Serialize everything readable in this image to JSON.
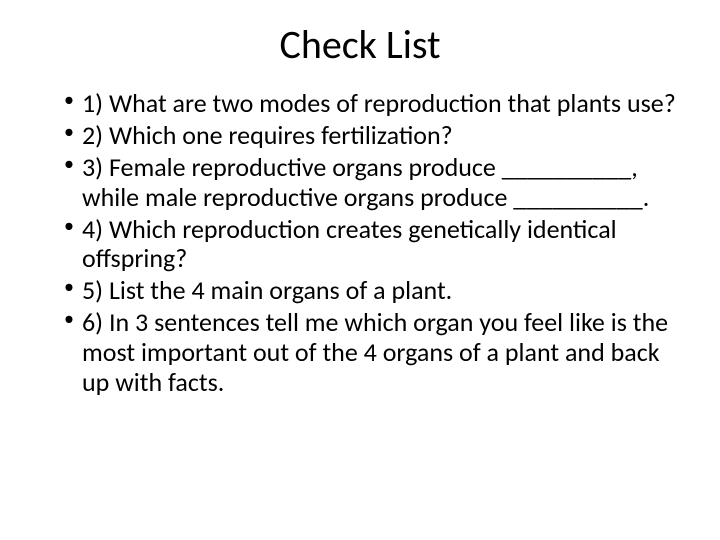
{
  "slide": {
    "title": "Check List",
    "title_fontsize": 40,
    "body_fontsize": 26,
    "background_color": "#ffffff",
    "text_color": "#000000",
    "bullets": [
      "1) What are two modes of reproduction that plants use?",
      "2) Which one requires fertilization?",
      "3) Female reproductive organs produce __________, while male reproductive organs produce __________.",
      "4) Which reproduction creates genetically identical offspring?",
      "5) List the 4 main organs of a plant.",
      "6) In 3 sentences tell me which organ you feel like is the most important out of the 4 organs of a plant and back up with facts."
    ]
  }
}
